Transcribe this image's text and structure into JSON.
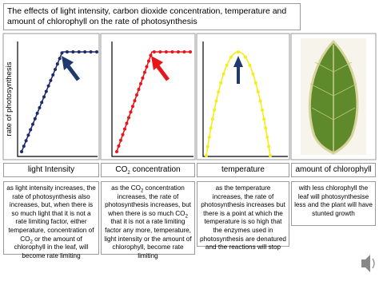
{
  "title": "The effects of light intensity, carbon dioxide concentration, temperature and amount of chlorophyll on the rate of photosynthesis",
  "y_axis_label": "rate of photosynthesis",
  "panels": [
    {
      "label": [
        {
          "text": "light Intensity"
        }
      ],
      "description": [
        {
          "text": "as light intensity increases, the rate of photosynthesis also increases, but, when there is so much light that it is not a rate limiting factor, either temperature, concentration of CO"
        },
        {
          "text": "2",
          "sub": true
        },
        {
          "text": " or the amount of chlorophyll in the leaf, will become rate limiting"
        }
      ]
    },
    {
      "label": [
        {
          "text": "CO"
        },
        {
          "text": "2",
          "sub": true
        },
        {
          "text": " concentration"
        }
      ],
      "description": [
        {
          "text": "as the CO"
        },
        {
          "text": "2",
          "sub": true
        },
        {
          "text": " concentration increases, the rate of photosynthesis increases, but when there is so much CO"
        },
        {
          "text": "2",
          "sub": true
        },
        {
          "text": " that it is not a rate limiting factor any more, temperature, light intensity or the amount of chlorophyll, become rate limiting"
        }
      ]
    },
    {
      "label": [
        {
          "text": "temperature"
        }
      ],
      "description": [
        {
          "text": "as the temperature increases, the rate of photosynthesis increases but there is a point at which the temperature is so high that the enzymes used in photosynthesis are denatured and the reactions will stop"
        }
      ]
    },
    {
      "label": [
        {
          "text": "amount of chlorophyll"
        }
      ],
      "description": [
        {
          "text": "with less chlorophyll the leaf will photosynthesise less and the plant will have stunted growth"
        }
      ]
    }
  ]
}
